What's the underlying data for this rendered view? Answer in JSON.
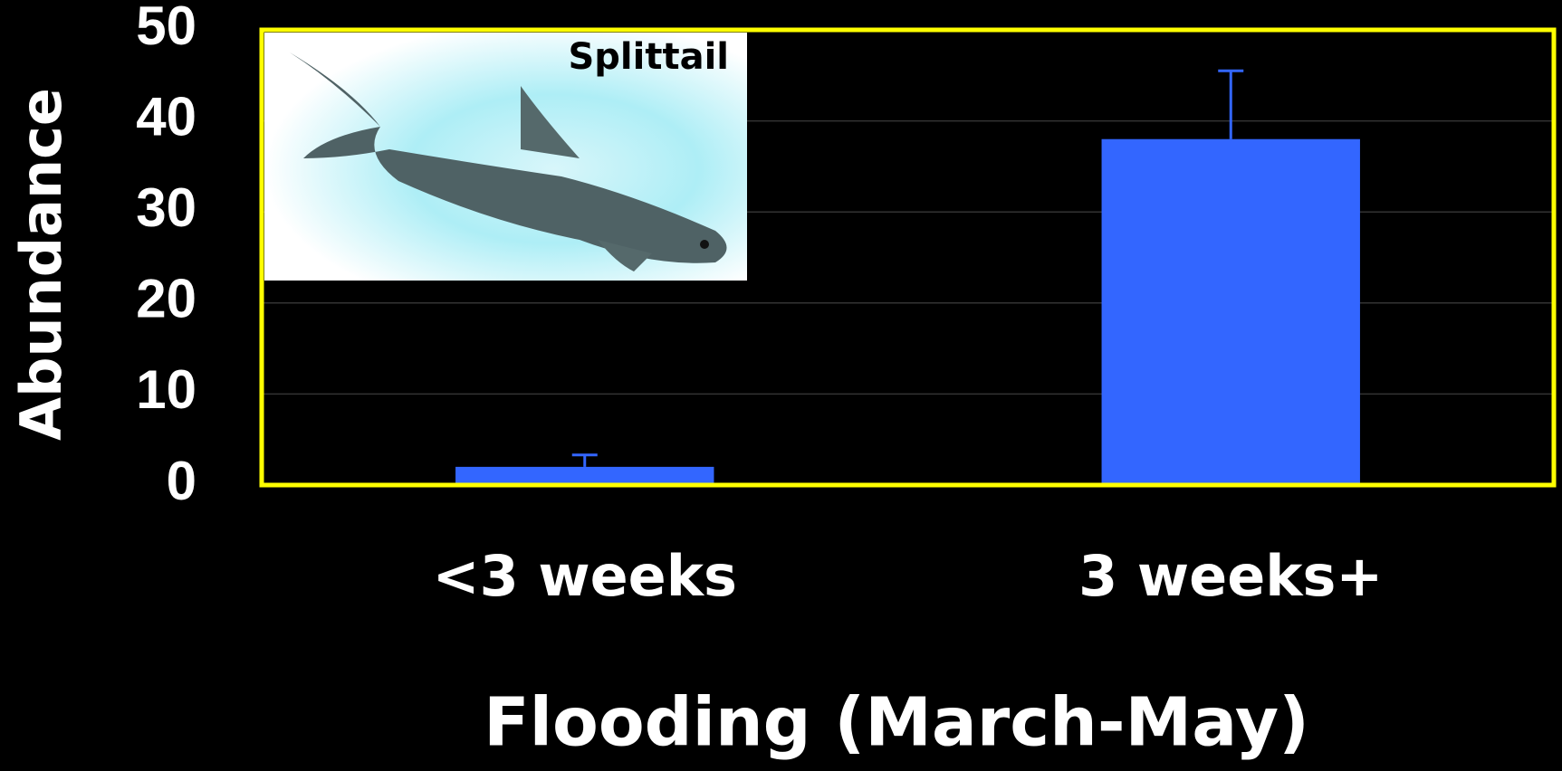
{
  "chart_data": {
    "type": "bar",
    "annotation": "Splittail",
    "ylabel": "Abundance",
    "xlabel": "Flooding (March-May)",
    "categories": [
      "<3 weeks",
      "3 weeks+"
    ],
    "values": [
      2,
      38
    ],
    "errors": [
      1.3,
      7.5
    ],
    "color": "#3366ff",
    "ylim": [
      0,
      50
    ],
    "yticks": [
      0,
      10,
      20,
      30,
      40,
      50
    ],
    "grid": true,
    "grid_color": "#333333"
  }
}
